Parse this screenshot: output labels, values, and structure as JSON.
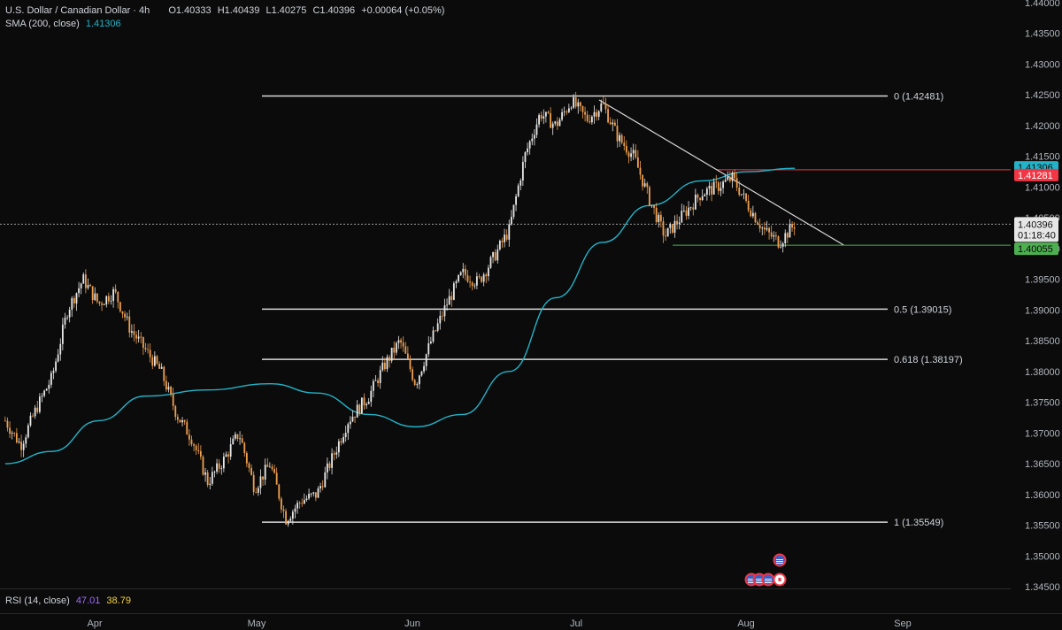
{
  "header": {
    "symbol": "U.S. Dollar / Canadian Dollar · 4h",
    "open": "O1.40333",
    "high": "H1.40439",
    "low": "L1.40275",
    "close": "C1.40396",
    "change": "+0.00064 (+0.05%)",
    "sma_label": "SMA (200, close)",
    "sma_value": "1.41306"
  },
  "rsi_legend": {
    "label": "RSI (14, close)",
    "value1": "47.01",
    "value2": "38.79"
  },
  "colors": {
    "background": "#0b0b0b",
    "candle_up": "#e8e8e8",
    "candle_down": "#f0a050",
    "sma": "#22b3c8",
    "fib_line": "#d9d9d9",
    "resistance": "#f23645",
    "support": "#4caf50",
    "price_line": "#9a9a9a"
  },
  "x_axis": {
    "months": [
      "Apr",
      "May",
      "Jun",
      "Jul",
      "Aug",
      "Sep"
    ]
  },
  "price_scale": {
    "ticks": [
      "1.44000",
      "1.43500",
      "1.43000",
      "1.42500",
      "1.42000",
      "1.41500",
      "1.41000",
      "1.40500",
      "1.40000",
      "1.39500",
      "1.39000",
      "1.38500",
      "1.38000",
      "1.37500",
      "1.37000",
      "1.36500",
      "1.36000",
      "1.35500",
      "1.35000",
      "1.34500"
    ],
    "current_price": "1.40396",
    "countdown": "01:18:40",
    "sma_tag": "1.41306",
    "resistance_tag": "1.41281",
    "support_tag": "1.40055"
  },
  "fib_levels": [
    {
      "label": "0 (1.42481)",
      "price": 1.42481
    },
    {
      "label": "0.5 (1.39015)",
      "price": 1.39015
    },
    {
      "label": "0.618 (1.38197)",
      "price": 1.38197
    },
    {
      "label": "1 (1.35549)",
      "price": 1.35549
    }
  ],
  "chart_data": {
    "type": "line",
    "title": "U.S. Dollar / Canadian Dollar · 4h",
    "x": [
      "Apr",
      "May",
      "Jun",
      "Jul",
      "Aug",
      "Sep"
    ],
    "ylim": [
      1.345,
      1.44
    ],
    "grid": false,
    "series": [
      {
        "name": "U.S. Dollar / Canadian Dollar · 4h",
        "points": [
          [
            "Mar 23",
            1.372
          ],
          [
            "Mar 26",
            1.368
          ],
          [
            "Mar 29",
            1.374
          ],
          [
            "Apr 1",
            1.379
          ],
          [
            "Apr 4",
            1.39
          ],
          [
            "Apr 7",
            1.395
          ],
          [
            "Apr 10",
            1.391
          ],
          [
            "Apr 13",
            1.393
          ],
          [
            "Apr 16",
            1.387
          ],
          [
            "Apr 19",
            1.3835
          ],
          [
            "Apr 22",
            1.38
          ],
          [
            "Apr 25",
            1.373
          ],
          [
            "Apr 28",
            1.369
          ],
          [
            "May 1",
            1.362
          ],
          [
            "May 4",
            1.3655
          ],
          [
            "May 7",
            1.37
          ],
          [
            "May 10",
            1.361
          ],
          [
            "May 13",
            1.365
          ],
          [
            "May 16",
            1.356
          ],
          [
            "May 19",
            1.359
          ],
          [
            "May 22",
            1.36
          ],
          [
            "May 25",
            1.366
          ],
          [
            "May 28",
            1.372
          ],
          [
            "Jun 1",
            1.376
          ],
          [
            "Jun 4",
            1.381
          ],
          [
            "Jun 7",
            1.385
          ],
          [
            "Jun 10",
            1.378
          ],
          [
            "Jun 13",
            1.385
          ],
          [
            "Jun 16",
            1.391
          ],
          [
            "Jun 19",
            1.396
          ],
          [
            "Jun 22",
            1.3945
          ],
          [
            "Jun 25",
            1.3985
          ],
          [
            "Jun 28",
            1.403
          ],
          [
            "Jul 1",
            1.415
          ],
          [
            "Jul 4",
            1.422
          ],
          [
            "Jul 7",
            1.42
          ],
          [
            "Jul 10",
            1.424
          ],
          [
            "Jul 13",
            1.421
          ],
          [
            "Jul 16",
            1.4235
          ],
          [
            "Jul 19",
            1.418
          ],
          [
            "Jul 22",
            1.415
          ],
          [
            "Jul 25",
            1.408
          ],
          [
            "Jul 28",
            1.402
          ],
          [
            "Aug 1",
            1.406
          ],
          [
            "Aug 4",
            1.409
          ],
          [
            "Aug 7",
            1.41
          ],
          [
            "Aug 10",
            1.4115
          ],
          [
            "Aug 13",
            1.407
          ],
          [
            "Aug 16",
            1.403
          ],
          [
            "Aug 19",
            1.401
          ],
          [
            "Aug 22",
            1.404
          ]
        ]
      },
      {
        "name": "SMA (200, close)",
        "points": [
          [
            "Mar 23",
            1.365
          ],
          [
            "Apr 1",
            1.367
          ],
          [
            "Apr 10",
            1.372
          ],
          [
            "Apr 19",
            1.376
          ],
          [
            "May 1",
            1.377
          ],
          [
            "May 13",
            1.378
          ],
          [
            "May 22",
            1.3765
          ],
          [
            "Jun 1",
            1.373
          ],
          [
            "Jun 10",
            1.371
          ],
          [
            "Jun 19",
            1.373
          ],
          [
            "Jun 28",
            1.38
          ],
          [
            "Jul 7",
            1.392
          ],
          [
            "Jul 16",
            1.401
          ],
          [
            "Jul 25",
            1.407
          ],
          [
            "Aug 4",
            1.411
          ],
          [
            "Aug 13",
            1.4125
          ],
          [
            "Aug 22",
            1.41306
          ]
        ]
      }
    ]
  }
}
